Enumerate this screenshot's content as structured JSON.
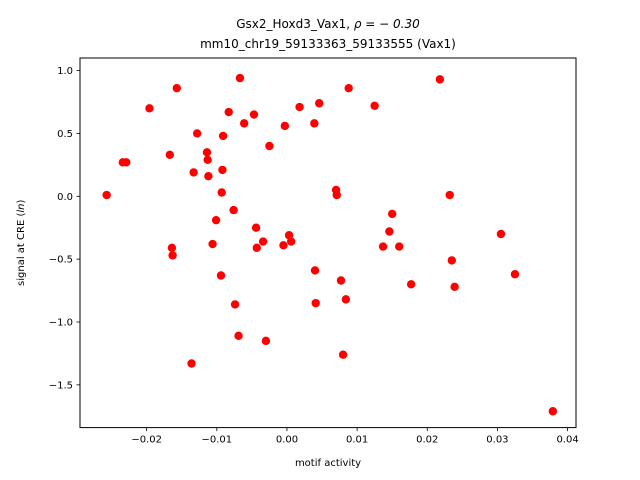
{
  "chart_data": {
    "type": "scatter",
    "title_line1_prefix": "Gsx2_Hoxd3_Vax1, ",
    "title_line1_math": "ρ = − 0.30",
    "title_line2": "mm10_chr19_59133363_59133555 (Vax1)",
    "xlabel": "motif activity",
    "ylabel_prefix": "signal at CRE (",
    "ylabel_math": "ln",
    "ylabel_suffix": ")",
    "xlim": [
      -0.0295,
      0.0412
    ],
    "ylim": [
      -1.84,
      1.1
    ],
    "x_ticks": [
      -0.02,
      -0.01,
      0.0,
      0.01,
      0.02,
      0.03,
      0.04
    ],
    "x_tick_labels": [
      "−0.02",
      "−0.01",
      "0.00",
      "0.01",
      "0.02",
      "0.03",
      "0.04"
    ],
    "y_ticks": [
      1.0,
      0.5,
      0.0,
      -0.5,
      -1.0,
      -1.5
    ],
    "y_tick_labels": [
      "1.0",
      "0.5",
      "0.0",
      "−0.5",
      "−1.0",
      "−1.5"
    ],
    "marker_color": "#ff0000",
    "grid": false,
    "points": [
      {
        "x": -0.0257,
        "y": 0.01
      },
      {
        "x": -0.0234,
        "y": 0.27
      },
      {
        "x": -0.0229,
        "y": 0.27
      },
      {
        "x": -0.0196,
        "y": 0.7
      },
      {
        "x": -0.0167,
        "y": 0.33
      },
      {
        "x": -0.0164,
        "y": -0.41
      },
      {
        "x": -0.0163,
        "y": -0.47
      },
      {
        "x": -0.0157,
        "y": 0.86
      },
      {
        "x": -0.0136,
        "y": -1.33
      },
      {
        "x": -0.0133,
        "y": 0.19
      },
      {
        "x": -0.0128,
        "y": 0.5
      },
      {
        "x": -0.0114,
        "y": 0.35
      },
      {
        "x": -0.0113,
        "y": 0.29
      },
      {
        "x": -0.0112,
        "y": 0.16
      },
      {
        "x": -0.0106,
        "y": -0.38
      },
      {
        "x": -0.0101,
        "y": -0.19
      },
      {
        "x": -0.0094,
        "y": -0.63
      },
      {
        "x": -0.0093,
        "y": 0.03
      },
      {
        "x": -0.0092,
        "y": 0.21
      },
      {
        "x": -0.0091,
        "y": 0.48
      },
      {
        "x": -0.0083,
        "y": 0.67
      },
      {
        "x": -0.0076,
        "y": -0.11
      },
      {
        "x": -0.0074,
        "y": -0.86
      },
      {
        "x": -0.0069,
        "y": -1.11
      },
      {
        "x": -0.0067,
        "y": 0.94
      },
      {
        "x": -0.0061,
        "y": 0.58
      },
      {
        "x": -0.0047,
        "y": 0.65
      },
      {
        "x": -0.0044,
        "y": -0.25
      },
      {
        "x": -0.0043,
        "y": -0.41
      },
      {
        "x": -0.0034,
        "y": -0.36
      },
      {
        "x": -0.003,
        "y": -1.15
      },
      {
        "x": -0.0025,
        "y": 0.4
      },
      {
        "x": -0.0005,
        "y": -0.39
      },
      {
        "x": -0.0003,
        "y": 0.56
      },
      {
        "x": 0.0003,
        "y": -0.31
      },
      {
        "x": 0.0006,
        "y": -0.36
      },
      {
        "x": 0.0018,
        "y": 0.71
      },
      {
        "x": 0.0039,
        "y": 0.58
      },
      {
        "x": 0.004,
        "y": -0.59
      },
      {
        "x": 0.0041,
        "y": -0.85
      },
      {
        "x": 0.0046,
        "y": 0.74
      },
      {
        "x": 0.007,
        "y": 0.05
      },
      {
        "x": 0.0071,
        "y": 0.01
      },
      {
        "x": 0.0077,
        "y": -0.67
      },
      {
        "x": 0.008,
        "y": -1.26
      },
      {
        "x": 0.0084,
        "y": -0.82
      },
      {
        "x": 0.0088,
        "y": 0.86
      },
      {
        "x": 0.0125,
        "y": 0.72
      },
      {
        "x": 0.0137,
        "y": -0.4
      },
      {
        "x": 0.0146,
        "y": -0.28
      },
      {
        "x": 0.015,
        "y": -0.14
      },
      {
        "x": 0.016,
        "y": -0.4
      },
      {
        "x": 0.0177,
        "y": -0.7
      },
      {
        "x": 0.0218,
        "y": 0.93
      },
      {
        "x": 0.0232,
        "y": 0.01
      },
      {
        "x": 0.0235,
        "y": -0.51
      },
      {
        "x": 0.0239,
        "y": -0.72
      },
      {
        "x": 0.0305,
        "y": -0.3
      },
      {
        "x": 0.0325,
        "y": -0.62
      },
      {
        "x": 0.0379,
        "y": -1.71
      }
    ]
  }
}
